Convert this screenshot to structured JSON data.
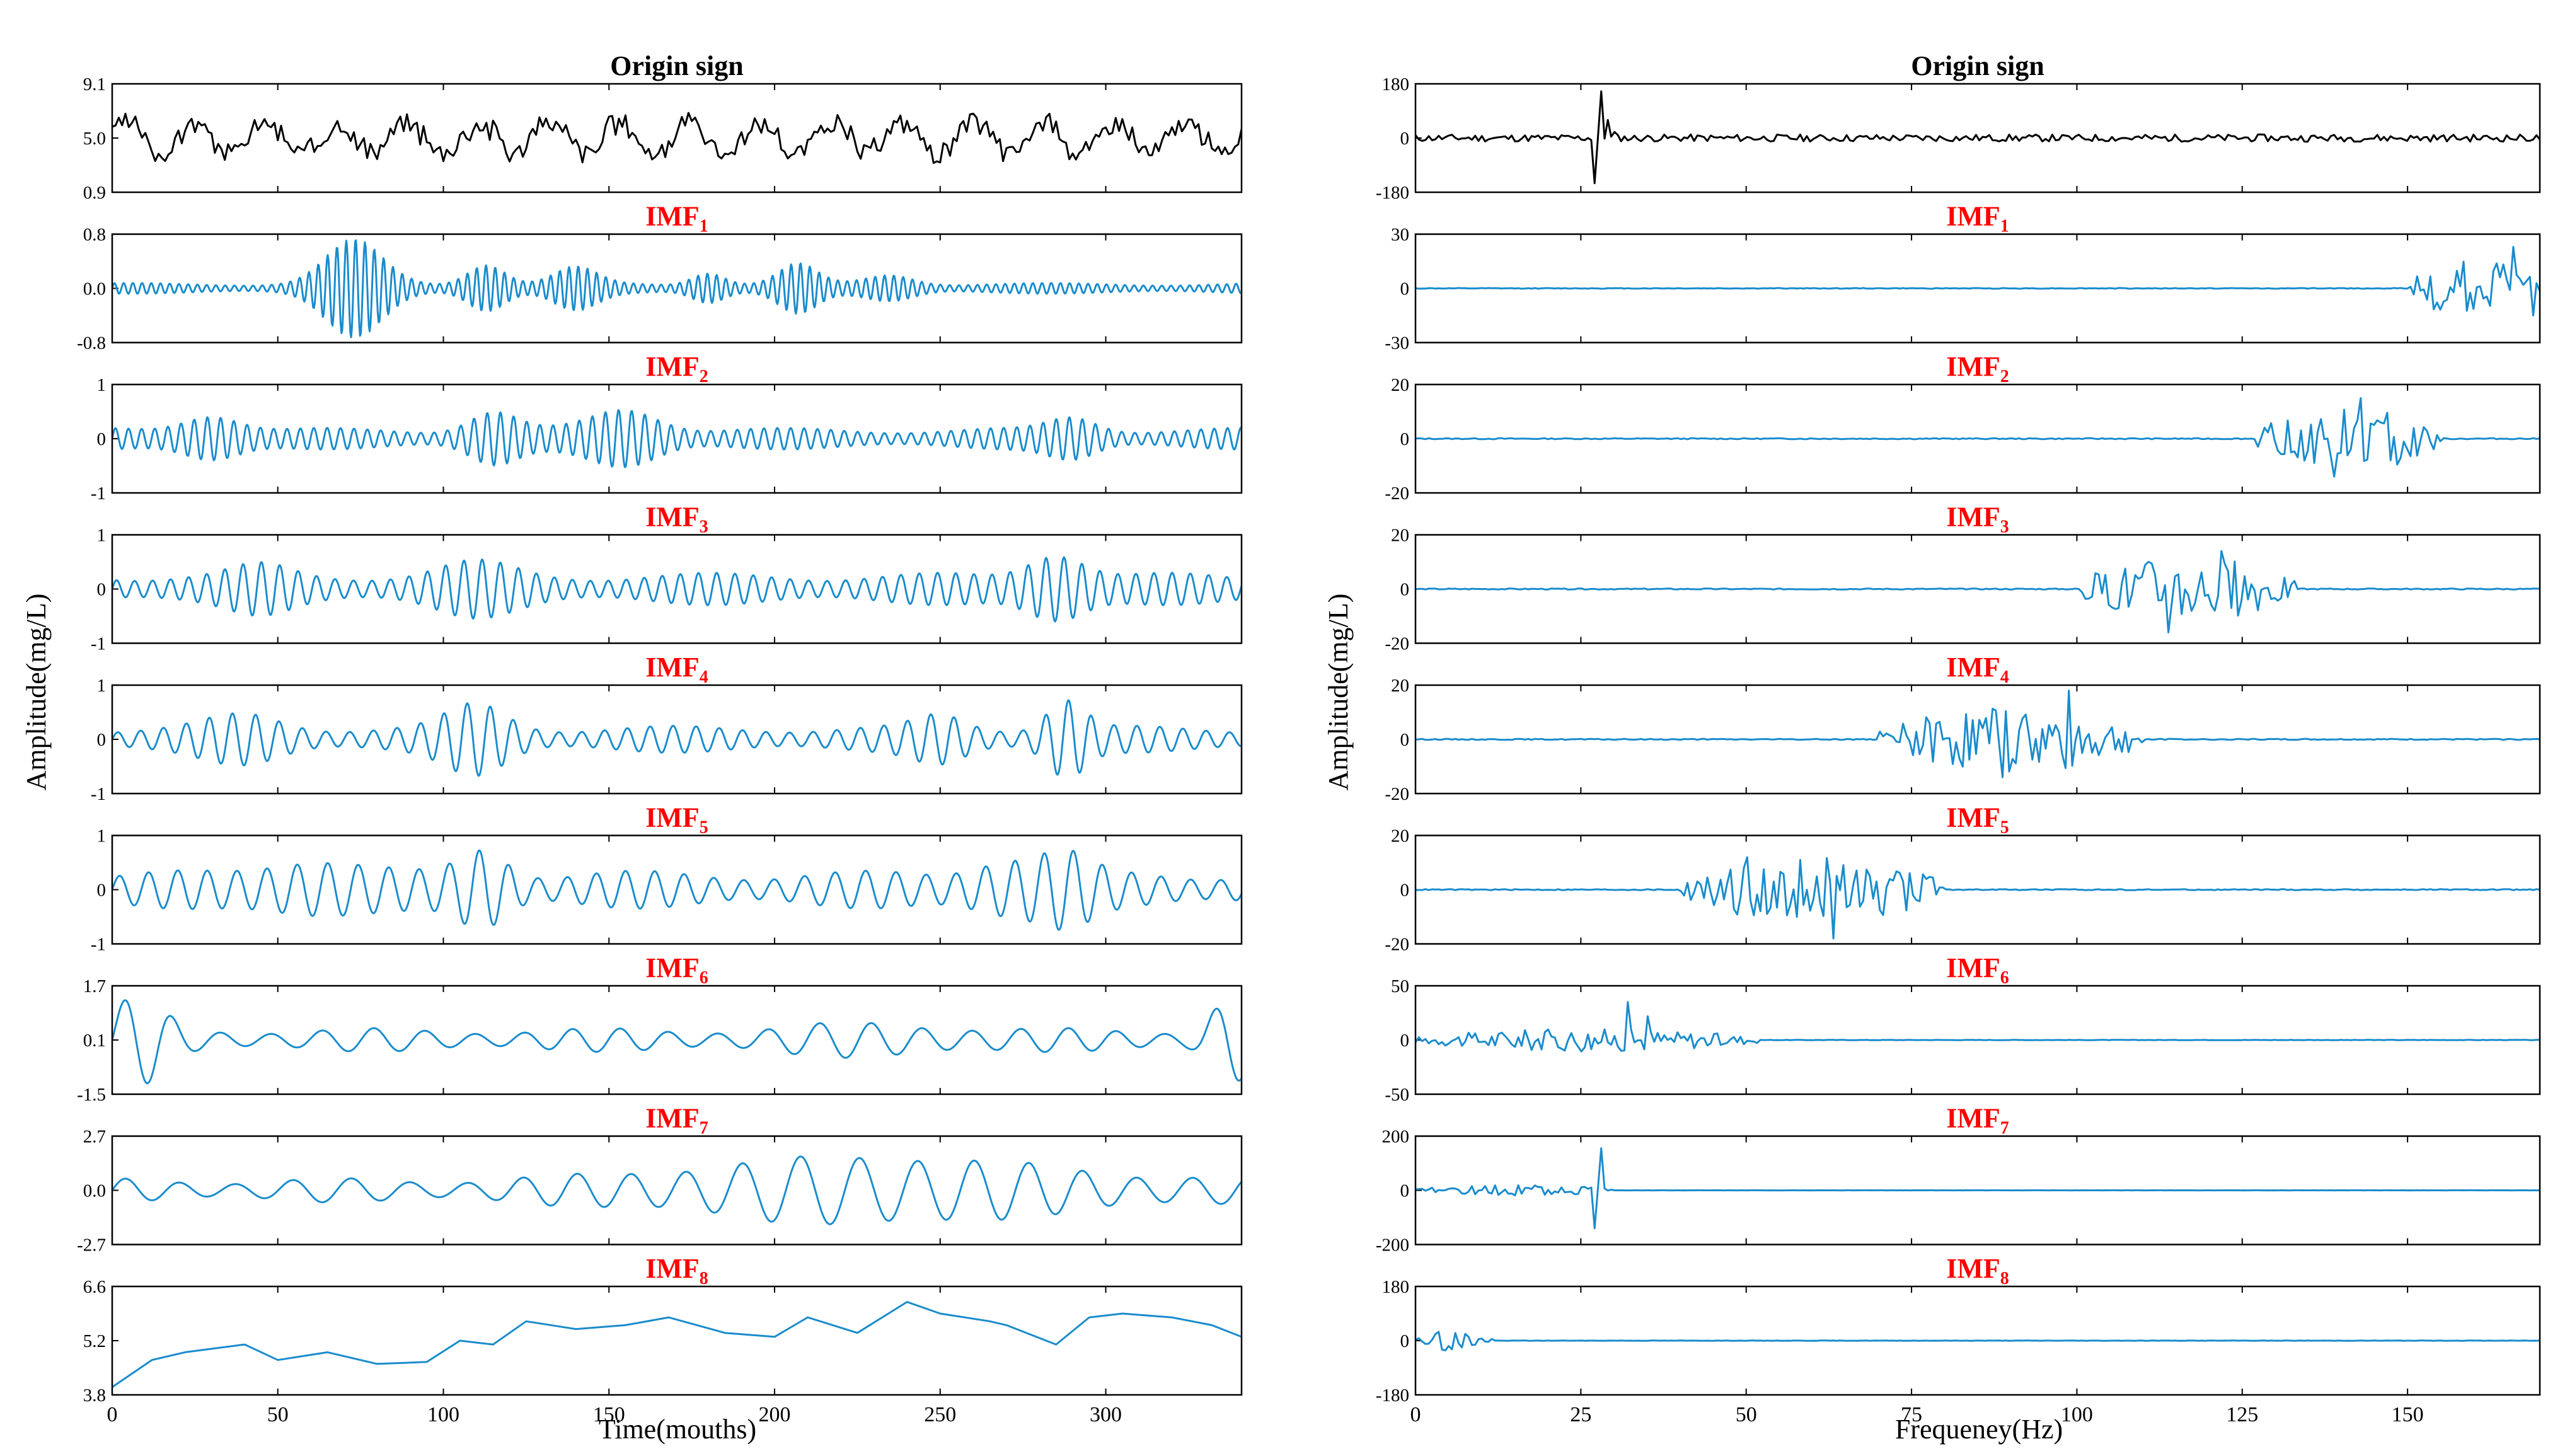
{
  "chart_data": {
    "type": "line",
    "figure": "Signal decomposition into intrinsic mode functions (IMF1–IMF8) shown in time domain (left) and frequency domain (right)",
    "colors": {
      "origin": "#000000",
      "imf": "#1a8ccc",
      "imf_title": "#ff0000",
      "axis": "#000000"
    },
    "panels": [
      {
        "column": "time",
        "xlabel": "Time(mouths)",
        "ylabel": "Amplitude(mg/L)",
        "xlim": [
          0,
          341
        ],
        "xticks": [
          0,
          50,
          100,
          150,
          200,
          250,
          300
        ],
        "xtick_labels": [
          "0",
          "50",
          "100",
          "150",
          "200",
          "250",
          "300"
        ],
        "rows": [
          {
            "title": "Origin sign",
            "sub": "",
            "ylim": [
              0.9,
              9.1
            ],
            "yticks": [
              "0.9",
              "5.0",
              "9.1"
            ],
            "wave": {
              "kind": "noisy",
              "center": 5.0,
              "amp": 1.6,
              "seed": 3
            }
          },
          {
            "title": "IMF",
            "sub": "1",
            "ylim": [
              -0.8,
              0.8
            ],
            "yticks": [
              "-0.8",
              "0.0",
              "0.8"
            ],
            "wave": {
              "kind": "osc",
              "period": 2.8,
              "base": 0.08,
              "bursts": [
                [
                  73,
                  0.65,
                  12
                ],
                [
                  113,
                  0.3,
                  8
                ],
                [
                  140,
                  0.25,
                  9
                ],
                [
                  207,
                  0.3,
                  8
                ],
                [
                  180,
                  0.18,
                  7
                ],
                [
                  235,
                  0.14,
                  10
                ]
              ],
              "seed": 1
            }
          },
          {
            "title": "IMF",
            "sub": "2",
            "ylim": [
              -1,
              1
            ],
            "yticks": [
              "-1",
              "0",
              "1"
            ],
            "wave": {
              "kind": "osc",
              "period": 4.0,
              "base": 0.2,
              "bursts": [
                [
                  30,
                  0.3,
                  12
                ],
                [
                  115,
                  0.35,
                  10
                ],
                [
                  155,
                  0.4,
                  14
                ],
                [
                  290,
                  0.25,
                  10
                ]
              ],
              "seed": 2
            }
          },
          {
            "title": "IMF",
            "sub": "3",
            "ylim": [
              -1,
              1
            ],
            "yticks": [
              "-1",
              "0",
              "1"
            ],
            "wave": {
              "kind": "osc",
              "period": 5.5,
              "base": 0.3,
              "bursts": [
                [
                  45,
                  0.2,
                  12
                ],
                [
                  110,
                  0.25,
                  15
                ],
                [
                  285,
                  0.45,
                  12
                ]
              ],
              "seed": 4
            }
          },
          {
            "title": "IMF",
            "sub": "4",
            "ylim": [
              -1,
              1
            ],
            "yticks": [
              "-1",
              "0",
              "1"
            ],
            "wave": {
              "kind": "osc",
              "period": 7.0,
              "base": 0.25,
              "bursts": [
                [
                  40,
                  0.25,
                  15
                ],
                [
                  110,
                  0.45,
                  12
                ],
                [
                  250,
                  0.25,
                  10
                ],
                [
                  288,
                  0.55,
                  8
                ]
              ],
              "seed": 5
            }
          },
          {
            "title": "IMF",
            "sub": "5",
            "ylim": [
              -1,
              1
            ],
            "yticks": [
              "-1",
              "0",
              "1"
            ],
            "wave": {
              "kind": "osc",
              "period": 9.0,
              "base": 0.35,
              "bursts": [
                [
                  60,
                  0.3,
                  20
                ],
                [
                  112,
                  0.5,
                  10
                ],
                [
                  270,
                  0.3,
                  15
                ],
                [
                  288,
                  0.35,
                  10
                ]
              ],
              "seed": 6
            }
          },
          {
            "title": "IMF",
            "sub": "6",
            "ylim": [
              -1.5,
              1.7
            ],
            "yticks": [
              "-1.5",
              "0.1",
              "1.7"
            ],
            "wave": {
              "kind": "osc",
              "period": 15.0,
              "center": 0.1,
              "base": 0.35,
              "bursts": [
                [
                  8,
                  1.0,
                  10
                ],
                [
                  338,
                  1.0,
                  8
                ],
                [
                  230,
                  0.2,
                  30
                ]
              ],
              "seed": 7
            }
          },
          {
            "title": "IMF",
            "sub": "7",
            "ylim": [
              -2.7,
              2.7
            ],
            "yticks": [
              "-2.7",
              "0.0",
              "2.7"
            ],
            "wave": {
              "kind": "osc",
              "period": 17.0,
              "base": 0.6,
              "bursts": [
                [
                  230,
                  1.2,
                  70
                ]
              ],
              "seed": 8
            }
          },
          {
            "title": "IMF",
            "sub": "8",
            "ylim": [
              3.8,
              6.6
            ],
            "yticks": [
              "3.8",
              "5.2",
              "6.6"
            ],
            "wave": {
              "kind": "points",
              "x": [
                0,
                12,
                22,
                40,
                50,
                65,
                80,
                95,
                105,
                115,
                125,
                140,
                155,
                168,
                185,
                200,
                210,
                225,
                240,
                250,
                265,
                270,
                285,
                295,
                305,
                320,
                332,
                341
              ],
              "y": [
                4.0,
                4.7,
                4.9,
                5.1,
                4.7,
                4.9,
                4.6,
                4.65,
                5.2,
                5.1,
                5.7,
                5.5,
                5.6,
                5.8,
                5.4,
                5.3,
                5.8,
                5.4,
                6.2,
                5.9,
                5.7,
                5.6,
                5.1,
                5.8,
                5.9,
                5.8,
                5.6,
                5.3
              ]
            }
          }
        ]
      },
      {
        "column": "frequency",
        "xlabel": "Frequeney(Hz)",
        "ylabel": "Amplitude(mg/L)",
        "xlim": [
          0,
          170
        ],
        "xticks": [
          0,
          25,
          50,
          75,
          100,
          125,
          150
        ],
        "xtick_labels": [
          "0",
          "25",
          "50",
          "75",
          "100",
          "125",
          "150"
        ],
        "rows": [
          {
            "title": "Origin sign",
            "sub": "",
            "ylim": [
              -180,
              180
            ],
            "yticks": [
              "-180",
              "0",
              "180"
            ],
            "wave": {
              "kind": "spectrum",
              "spikes": [
                [
                  27,
                  -150
                ],
                [
                  28,
                  155
                ],
                [
                  29,
                  60
                ],
                [
                  30,
                  20
                ]
              ],
              "noise": 12,
              "seed": 11
            }
          },
          {
            "title": "IMF",
            "sub": "1",
            "ylim": [
              -30,
              30
            ],
            "yticks": [
              "-30",
              "0",
              "30"
            ],
            "wave": {
              "kind": "spectrum",
              "region": [
                150,
                170
              ],
              "regionAmp": 12,
              "spikes": [
                [
                  166,
                  23
                ],
                [
                  169,
                  -15
                ]
              ],
              "noise": 0.2,
              "seed": 12
            }
          },
          {
            "title": "IMF",
            "sub": "2",
            "ylim": [
              -20,
              20
            ],
            "yticks": [
              "-20",
              "0",
              "20"
            ],
            "wave": {
              "kind": "spectrum",
              "region": [
                127,
                155
              ],
              "regionAmp": 9,
              "spikes": [
                [
                  143,
                  15
                ],
                [
                  139,
                  -14
                ]
              ],
              "noise": 0.2,
              "seed": 13
            }
          },
          {
            "title": "IMF",
            "sub": "3",
            "ylim": [
              -20,
              20
            ],
            "yticks": [
              "-20",
              "0",
              "20"
            ],
            "wave": {
              "kind": "spectrum",
              "region": [
                100,
                133
              ],
              "regionAmp": 9,
              "spikes": [
                [
                  114,
                  -16
                ],
                [
                  122,
                  14
                ]
              ],
              "noise": 0.2,
              "seed": 14
            }
          },
          {
            "title": "IMF",
            "sub": "4",
            "ylim": [
              -20,
              20
            ],
            "yticks": [
              "-20",
              "0",
              "20"
            ],
            "wave": {
              "kind": "spectrum",
              "region": [
                70,
                110
              ],
              "regionAmp": 9,
              "spikes": [
                [
                  89,
                  -14
                ],
                [
                  99,
                  18
                ]
              ],
              "noise": 0.2,
              "seed": 15
            }
          },
          {
            "title": "IMF",
            "sub": "5",
            "ylim": [
              -20,
              20
            ],
            "yticks": [
              "-20",
              "0",
              "20"
            ],
            "wave": {
              "kind": "spectrum",
              "region": [
                40,
                80
              ],
              "regionAmp": 9,
              "spikes": [
                [
                  50,
                  12
                ],
                [
                  63,
                  -18
                ]
              ],
              "noise": 0.2,
              "seed": 16
            }
          },
          {
            "title": "IMF",
            "sub": "6",
            "ylim": [
              -50,
              50
            ],
            "yticks": [
              "-50",
              "0",
              "50"
            ],
            "wave": {
              "kind": "spectrum",
              "region": [
                0,
                52
              ],
              "regionAmp": 8,
              "spikes": [
                [
                  32,
                  35
                ],
                [
                  35,
                  22
                ]
              ],
              "noise": 0.2,
              "seed": 17
            }
          },
          {
            "title": "IMF",
            "sub": "7",
            "ylim": [
              -200,
              200
            ],
            "yticks": [
              "-200",
              "0",
              "200"
            ],
            "wave": {
              "kind": "spectrum",
              "region": [
                0,
                30
              ],
              "regionAmp": 15,
              "spikes": [
                [
                  27,
                  -140
                ],
                [
                  28,
                  155
                ]
              ],
              "noise": 0.3,
              "seed": 18
            }
          },
          {
            "title": "IMF",
            "sub": "8",
            "ylim": [
              -180,
              180
            ],
            "yticks": [
              "-180",
              "0",
              "180"
            ],
            "wave": {
              "kind": "spectrum",
              "region": [
                0,
                12
              ],
              "regionAmp": 25,
              "spikes": [
                [
                  4,
                  -30
                ]
              ],
              "noise": 0.5,
              "seed": 19
            }
          }
        ]
      }
    ]
  }
}
